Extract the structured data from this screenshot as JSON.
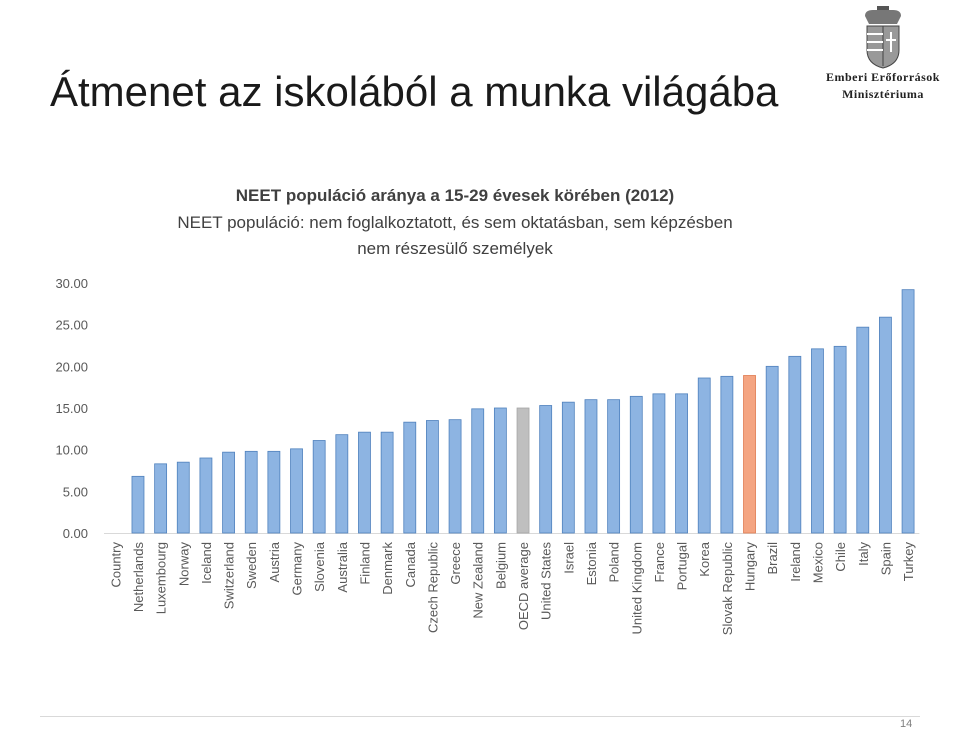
{
  "slide": {
    "title": "Átmenet az iskolából a munka világába",
    "page_number": "14"
  },
  "logo": {
    "line1": "Emberi Erőforrások",
    "line2": "Minisztériuma",
    "icon": "hungarian-coat-of-arms"
  },
  "colors": {
    "bar": "#8db4e2",
    "bar_stroke": "#4f81bd",
    "oecd_bar": "#bfbfbf",
    "hungary_bar": "#f4a582",
    "axis_text": "#595959",
    "axis_line": "#d9d9d9"
  },
  "chart_data": {
    "type": "bar",
    "title": "NEET populáció aránya a 15-29 évesek körében (2012)",
    "subtitle_line1": "NEET populáció: nem foglalkoztatott, és sem oktatásban, sem képzésben",
    "subtitle_line2": "nem részesülő személyek",
    "ylim": [
      0,
      30
    ],
    "yticks": [
      "0.00",
      "5.00",
      "10.00",
      "15.00",
      "20.00",
      "25.00",
      "30.00"
    ],
    "categories": [
      "Country",
      "Netherlands",
      "Luxembourg",
      "Norway",
      "Iceland",
      "Switzerland",
      "Sweden",
      "Austria",
      "Germany",
      "Slovenia",
      "Australia",
      "Finland",
      "Denmark",
      "Canada",
      "Czech Republic",
      "Greece",
      "New Zealand",
      "Belgium",
      "OECD average",
      "United States",
      "Israel",
      "Estonia",
      "Poland",
      "United Kingdom",
      "France",
      "Portugal",
      "Korea",
      "Slovak Republic",
      "Hungary",
      "Brazil",
      "Ireland",
      "Mexico",
      "Chile",
      "Italy",
      "Spain",
      "Turkey"
    ],
    "values": [
      null,
      6.8,
      8.3,
      8.5,
      9.0,
      9.7,
      9.8,
      9.8,
      10.1,
      11.1,
      11.8,
      12.1,
      12.1,
      13.3,
      13.5,
      13.6,
      14.9,
      15.0,
      15.0,
      15.3,
      15.7,
      16.0,
      16.0,
      16.4,
      16.7,
      16.7,
      18.6,
      18.8,
      18.9,
      20.0,
      21.2,
      22.1,
      22.4,
      24.7,
      25.9,
      29.2
    ],
    "highlight": {
      "OECD average": "oecd",
      "Hungary": "hungary"
    },
    "grid": false,
    "legend": "none"
  }
}
